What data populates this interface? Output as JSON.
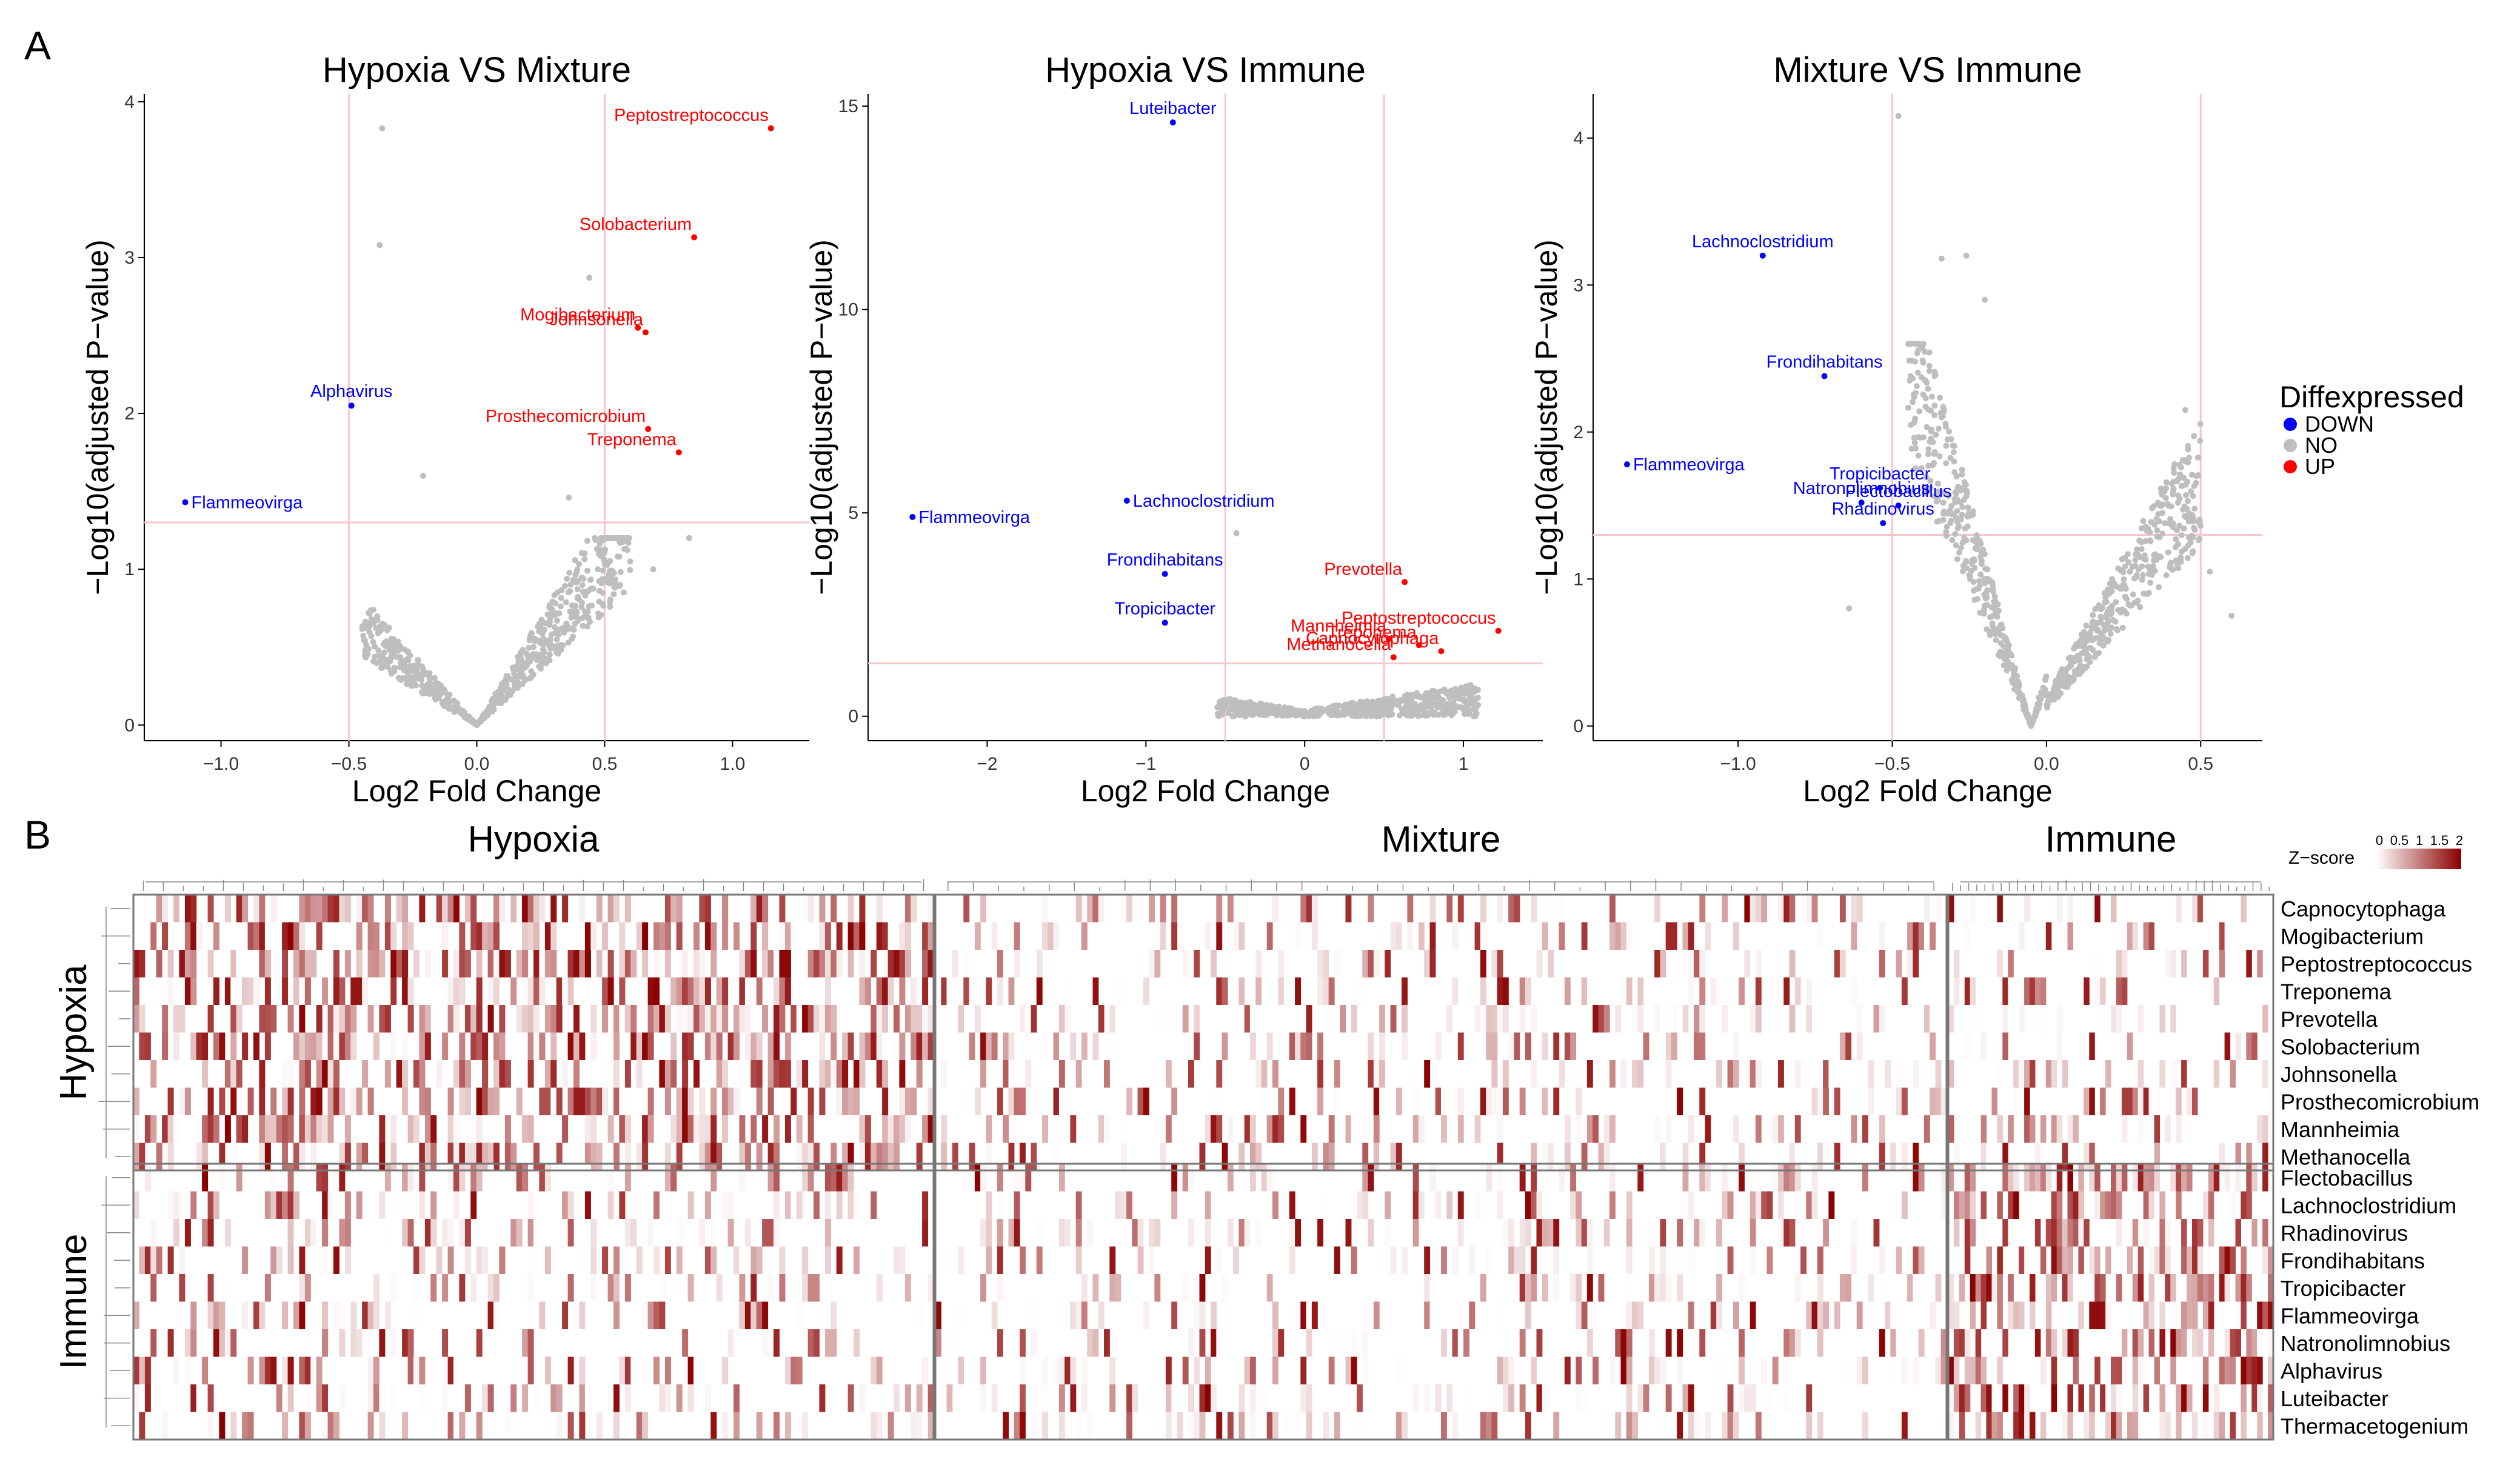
{
  "panel_labels": {
    "a": "A",
    "b": "B"
  },
  "volcano": {
    "xlabel": "Log2 Fold Change",
    "ylabel": "−Log10(adjusted P−value)",
    "legend": {
      "title": "Diffexpressed",
      "items": [
        {
          "label": "DOWN",
          "color": "#0000ff"
        },
        {
          "label": "NO",
          "color": "#bebebe"
        },
        {
          "label": "UP",
          "color": "#ff0000"
        }
      ]
    }
  },
  "chart_data": [
    {
      "type": "scatter",
      "title": "Hypoxia VS Mixture",
      "xlabel": "Log2 Fold Change",
      "ylabel": "−Log10(adjusted P−value)",
      "xlim": [
        -1.3,
        1.3
      ],
      "ylim": [
        -0.1,
        4.05
      ],
      "xticks": [
        -1.0,
        -0.5,
        0.0,
        0.5,
        1.0
      ],
      "xtick_labels": [
        "−1.0",
        "−0.5",
        "0.0",
        "0.5",
        "1.0"
      ],
      "yticks": [
        0,
        1,
        2,
        3,
        4
      ],
      "ytick_labels": [
        "0",
        "1",
        "2",
        "3",
        "4"
      ],
      "vlines": [
        -0.5,
        0.5
      ],
      "hline": 1.3,
      "labeled_points": [
        {
          "name": "Peptostreptococcus",
          "x": 1.15,
          "y": 3.83,
          "status": "UP"
        },
        {
          "name": "Solobacterium",
          "x": 0.85,
          "y": 3.13,
          "status": "UP"
        },
        {
          "name": "Mogibacterium",
          "x": 0.63,
          "y": 2.55,
          "status": "UP"
        },
        {
          "name": "Johnsonella",
          "x": 0.66,
          "y": 2.52,
          "status": "UP"
        },
        {
          "name": "Prosthecomicrobium",
          "x": 0.67,
          "y": 1.9,
          "status": "UP"
        },
        {
          "name": "Treponema",
          "x": 0.79,
          "y": 1.75,
          "status": "UP"
        },
        {
          "name": "Alphavirus",
          "x": -0.49,
          "y": 2.05,
          "status": "DOWN"
        },
        {
          "name": "Flammeovirga",
          "x": -1.14,
          "y": 1.43,
          "status": "DOWN"
        }
      ],
      "other_points": [
        {
          "x": -0.37,
          "y": 3.83
        },
        {
          "x": -0.38,
          "y": 3.08
        },
        {
          "x": 0.44,
          "y": 2.87
        },
        {
          "x": -0.21,
          "y": 1.6
        },
        {
          "x": 0.36,
          "y": 1.46
        },
        {
          "x": 0.83,
          "y": 1.2
        },
        {
          "x": 0.6,
          "y": 1.05
        },
        {
          "x": 0.69,
          "y": 1.0
        }
      ],
      "cloud": {
        "shape": "V",
        "x_range": [
          -0.45,
          0.6
        ],
        "y_range": [
          0,
          1.2
        ],
        "n": 700,
        "color": "#bebebe"
      }
    },
    {
      "type": "scatter",
      "title": "Hypoxia VS Immune",
      "xlabel": "Log2 Fold Change",
      "ylabel": "−Log10(adjusted P−value)",
      "xlim": [
        -2.75,
        1.5
      ],
      "ylim": [
        -0.6,
        15.3
      ],
      "xticks": [
        -2,
        -1,
        0,
        1
      ],
      "xtick_labels": [
        "−2",
        "−1",
        "0",
        "1"
      ],
      "yticks": [
        0,
        5,
        10,
        15
      ],
      "ytick_labels": [
        "0",
        "5",
        "10",
        "15"
      ],
      "vlines": [
        -0.5,
        0.5
      ],
      "hline": 1.3,
      "labeled_points": [
        {
          "name": "Luteibacter",
          "x": -0.83,
          "y": 14.6,
          "status": "DOWN"
        },
        {
          "name": "Lachnoclostridium",
          "x": -1.12,
          "y": 5.3,
          "status": "DOWN"
        },
        {
          "name": "Flammeovirga",
          "x": -2.47,
          "y": 4.9,
          "status": "DOWN"
        },
        {
          "name": "Frondihabitans",
          "x": -0.88,
          "y": 3.5,
          "status": "DOWN"
        },
        {
          "name": "Tropicibacter",
          "x": -0.88,
          "y": 2.3,
          "status": "DOWN"
        },
        {
          "name": "Prevotella",
          "x": 0.63,
          "y": 3.3,
          "status": "UP"
        },
        {
          "name": "Peptostreptococcus",
          "x": 1.22,
          "y": 2.1,
          "status": "UP"
        },
        {
          "name": "Mannheimia",
          "x": 0.53,
          "y": 1.9,
          "status": "UP"
        },
        {
          "name": "Treponema",
          "x": 0.72,
          "y": 1.75,
          "status": "UP"
        },
        {
          "name": "Methanocella",
          "x": 0.56,
          "y": 1.45,
          "status": "UP"
        },
        {
          "name": "Capnocytophaga",
          "x": 0.86,
          "y": 1.6,
          "status": "UP"
        }
      ],
      "other_points": [
        {
          "x": -0.43,
          "y": 4.5
        }
      ],
      "cloud": {
        "shape": "flat",
        "x_range": [
          -0.55,
          1.1
        ],
        "y_range": [
          0,
          0.9
        ],
        "n": 600,
        "color": "#bebebe"
      }
    },
    {
      "type": "scatter",
      "title": "Mixture VS Immune",
      "xlabel": "Log2 Fold Change",
      "ylabel": "−Log10(adjusted P−value)",
      "xlim": [
        -1.47,
        0.7
      ],
      "ylim": [
        -0.1,
        4.3
      ],
      "xticks": [
        -1.0,
        -0.5,
        0.0,
        0.5
      ],
      "xtick_labels": [
        "−1.0",
        "−0.5",
        "0.0",
        "0.5"
      ],
      "yticks": [
        0,
        1,
        2,
        3,
        4
      ],
      "ytick_labels": [
        "0",
        "1",
        "2",
        "3",
        "4"
      ],
      "vlines": [
        -0.5,
        0.5
      ],
      "hline": 1.3,
      "labeled_points": [
        {
          "name": "Lachnoclostridium",
          "x": -0.92,
          "y": 3.2,
          "status": "DOWN"
        },
        {
          "name": "Frondihabitans",
          "x": -0.72,
          "y": 2.38,
          "status": "DOWN"
        },
        {
          "name": "Flammeovirga",
          "x": -1.36,
          "y": 1.78,
          "status": "DOWN"
        },
        {
          "name": "Tropicibacter",
          "x": -0.54,
          "y": 1.62,
          "status": "DOWN"
        },
        {
          "name": "Natronolimnobius",
          "x": -0.6,
          "y": 1.52,
          "status": "DOWN"
        },
        {
          "name": "Flectobacillus",
          "x": -0.48,
          "y": 1.5,
          "status": "DOWN"
        },
        {
          "name": "Rhadinovirus",
          "x": -0.53,
          "y": 1.38,
          "status": "DOWN"
        }
      ],
      "other_points": [
        {
          "x": -0.48,
          "y": 4.15
        },
        {
          "x": -0.34,
          "y": 3.18
        },
        {
          "x": -0.26,
          "y": 3.2
        },
        {
          "x": -0.2,
          "y": 2.9
        },
        {
          "x": 0.45,
          "y": 2.15
        },
        {
          "x": 0.6,
          "y": 0.75
        },
        {
          "x": 0.53,
          "y": 1.05
        },
        {
          "x": -0.64,
          "y": 0.8
        }
      ],
      "cloud": {
        "shape": "V-steep",
        "x_range": [
          -0.45,
          0.5
        ],
        "y_range": [
          0,
          2.6
        ],
        "n": 800,
        "color": "#bebebe"
      }
    }
  ],
  "heatmap": {
    "zscore_legend": {
      "label": "Z−score",
      "ticks": [
        "0",
        "0.5",
        "1",
        "1.5",
        "2"
      ],
      "low_color": "#ffffff",
      "high_color": "#8b0000"
    },
    "column_groups": [
      {
        "name": "Hypoxia",
        "n_cols": 140
      },
      {
        "name": "Mixture",
        "n_cols": 180
      },
      {
        "name": "Immune",
        "n_cols": 60
      }
    ],
    "row_groups": [
      {
        "name": "Hypoxia",
        "rows": [
          "Capnocytophaga",
          "Mogibacterium",
          "Peptostreptococcus",
          "Treponema",
          "Prevotella",
          "Solobacterium",
          "Johnsonella",
          "Prosthecomicrobium",
          "Mannheimia",
          "Methanocella"
        ]
      },
      {
        "name": "Immune",
        "rows": [
          "Flectobacillus",
          "Lachnoclostridium",
          "Rhadinovirus",
          "Frondihabitans",
          "Tropicibacter",
          "Flammeovirga",
          "Natronolimnobius",
          "Alphavirus",
          "Luteibacter",
          "Thermacetogenium"
        ]
      }
    ]
  }
}
